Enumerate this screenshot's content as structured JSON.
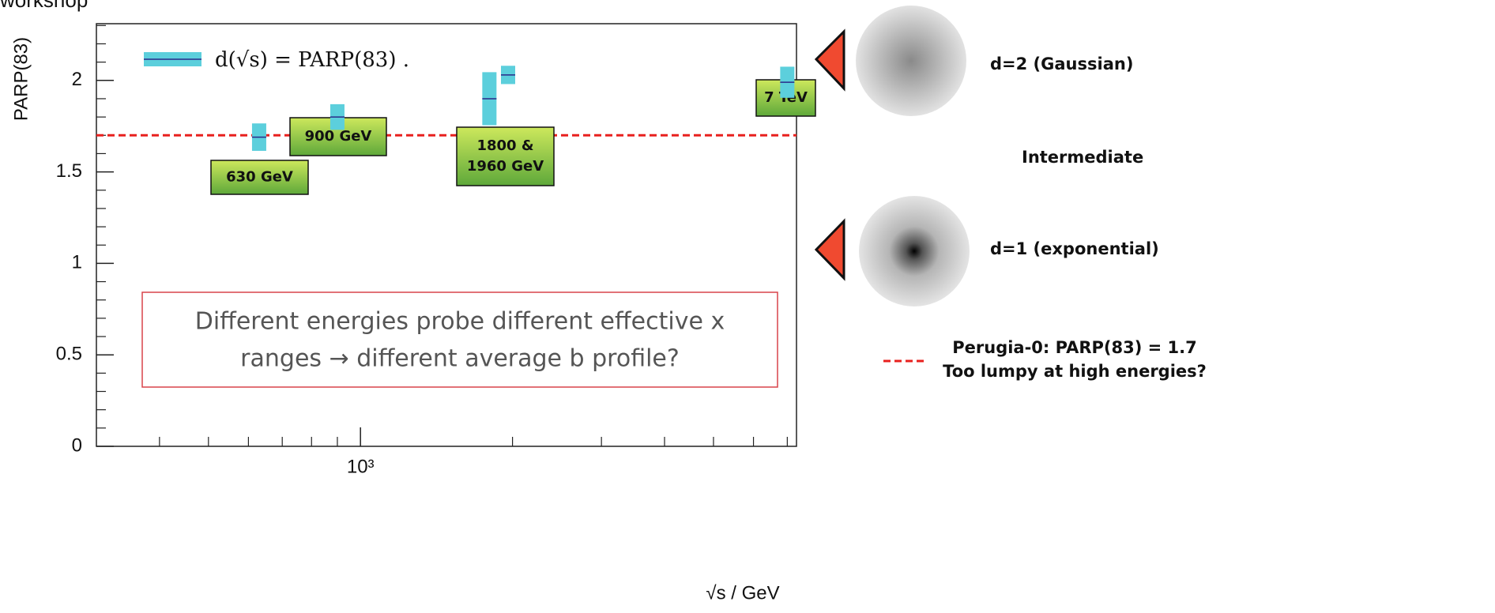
{
  "header": "workshop",
  "chart_data": {
    "type": "errorbar",
    "y_label": "PARP(83)",
    "x_label": "√s / GeV",
    "xscale": "log",
    "xlim": [
      300,
      7300
    ],
    "ylim": [
      0,
      2.31
    ],
    "xticks": [
      {
        "value": 1000,
        "label": "10³"
      }
    ],
    "xminor_ticks": [
      400,
      500,
      600,
      700,
      800,
      900,
      2000,
      3000,
      4000,
      5000,
      6000,
      7000
    ],
    "yticks": [
      0,
      0.5,
      1,
      1.5,
      2
    ],
    "yminor_ticks": [
      0.1,
      0.2,
      0.3,
      0.4,
      0.6,
      0.7,
      0.8,
      0.9,
      1.1,
      1.2,
      1.3,
      1.4,
      1.6,
      1.7,
      1.8,
      1.9,
      2.1,
      2.2,
      2.3
    ],
    "series": [
      {
        "name": "d(√s) = PARP(83) .",
        "color": "#5ccfdc",
        "line_color": "#2a2a8a",
        "x": [
          630,
          900,
          1800,
          1960,
          7000
        ],
        "values": [
          1.69,
          1.8,
          1.9,
          2.03,
          1.99
        ],
        "errors": [
          0.075,
          0.07,
          0.145,
          0.05,
          0.085
        ]
      }
    ],
    "reference_line": {
      "value": 1.7,
      "color": "#e8201e",
      "label_lines": [
        "Perugia-0: PARP(83) = 1.7",
        "Too lumpy at high energies?"
      ]
    },
    "annotations": [
      [
        "630 GeV"
      ],
      [
        "900 GeV"
      ],
      [
        "1800 &",
        "1960 GeV"
      ],
      [
        "7 TeV"
      ]
    ],
    "note_lines": [
      "Different energies probe different effective x",
      "ranges → different average b profile?"
    ]
  },
  "side_notes": [
    "d=2 (Gaussian)",
    "Intermediate",
    "d=1 (exponential)"
  ]
}
